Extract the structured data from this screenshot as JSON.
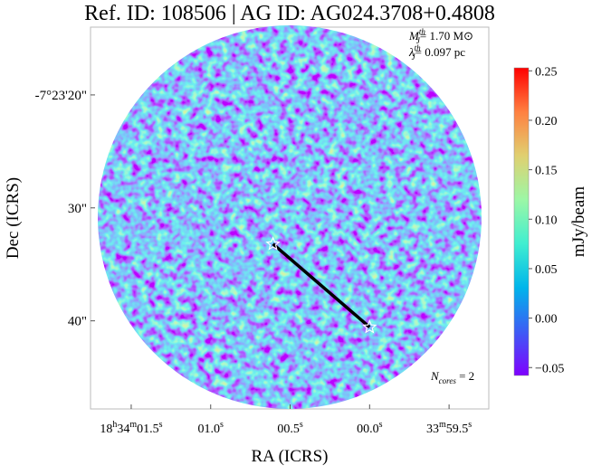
{
  "chart_data": {
    "type": "image",
    "title": "Ref. ID: 108506 | AG ID: AG024.3708+0.4808",
    "xlabel": "RA (ICRS)",
    "ylabel": "Dec (ICRS)",
    "xlim": [
      1.756,
      -0.75
    ],
    "xticks": [
      {
        "value": 1.5,
        "label": "18h34m01.5s"
      },
      {
        "value": 1.0,
        "label": "01.0s"
      },
      {
        "value": 0.5,
        "label": "00.5s"
      },
      {
        "value": 0.0,
        "label": "00.0s"
      },
      {
        "value": -0.5,
        "label": "33m59.5s"
      }
    ],
    "ylim": [
      47.8,
      14
    ],
    "yticks": [
      {
        "value": 20,
        "label": "-7°23'20\""
      },
      {
        "value": 30,
        "label": "30\""
      },
      {
        "value": 40,
        "label": "40\""
      }
    ],
    "cores": {
      "x": [
        0.608,
        0.0
      ],
      "y": [
        33.2,
        40.56
      ]
    },
    "colorbar": {
      "label": "mJy/beam",
      "clim": [
        -0.058,
        0.253
      ],
      "ticks": [
        {
          "value": 0.25,
          "label": "0.25"
        },
        {
          "value": 0.2,
          "label": "0.20"
        },
        {
          "value": 0.15,
          "label": "0.15"
        },
        {
          "value": 0.1,
          "label": "0.10"
        },
        {
          "value": 0.05,
          "label": "0.05"
        },
        {
          "value": 0.0,
          "label": "0.00"
        },
        {
          "value": -0.05,
          "label": "−0.05"
        }
      ],
      "colors": [
        "#7f00ff",
        "#3d5cf5",
        "#00b5eb",
        "#40eed0",
        "#9cf7a6",
        "#e0d070",
        "#ff8040",
        "#ff0000"
      ]
    },
    "annotations": [
      {
        "symbol": "M",
        "sub": "J",
        "sup": "th",
        "text": "= 1.70 M⊙"
      },
      {
        "symbol": "λ",
        "sub": "J",
        "sup": "th",
        "text": "= 0.097 pc"
      },
      {
        "symbol": "N",
        "sub": "cores",
        "text": " = 2"
      }
    ]
  }
}
